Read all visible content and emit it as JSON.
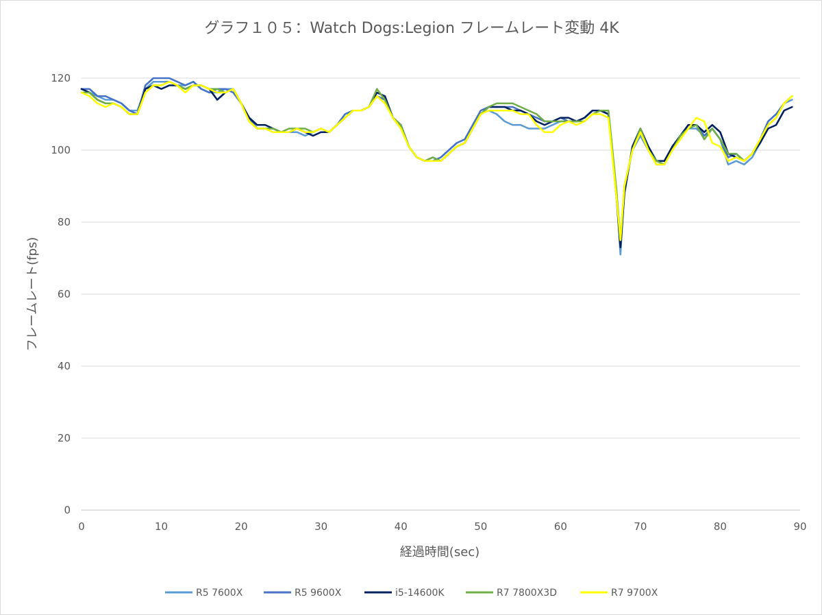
{
  "chart_data": {
    "type": "line",
    "title": "グラフ１０５：Watch Dogs:Legion フレームレート変動 4K",
    "xlabel": "経過時間(sec)",
    "ylabel": "フレームレート(fps)",
    "xlim": [
      0,
      90
    ],
    "ylim": [
      0,
      120
    ],
    "xticks": [
      0,
      10,
      20,
      30,
      40,
      50,
      60,
      70,
      80,
      90
    ],
    "yticks": [
      0,
      20,
      40,
      60,
      80,
      100,
      120
    ],
    "grid": "horizontal",
    "legend_position": "bottom",
    "x": [
      0,
      1,
      2,
      3,
      4,
      5,
      6,
      7,
      8,
      9,
      10,
      11,
      12,
      13,
      14,
      15,
      16,
      17,
      18,
      19,
      20,
      21,
      22,
      23,
      24,
      25,
      26,
      27,
      28,
      29,
      30,
      31,
      32,
      33,
      34,
      35,
      36,
      37,
      38,
      39,
      40,
      41,
      42,
      43,
      44,
      45,
      46,
      47,
      48,
      49,
      50,
      51,
      52,
      53,
      54,
      55,
      56,
      57,
      58,
      59,
      60,
      61,
      62,
      63,
      64,
      65,
      66,
      67,
      67.5,
      68,
      69,
      70,
      71,
      72,
      73,
      74,
      75,
      76,
      77,
      78,
      79,
      80,
      81,
      82,
      83,
      84,
      85,
      86,
      87,
      88,
      89
    ],
    "series": [
      {
        "name": "R5 7600X",
        "color": "#5b9bd5",
        "values": [
          117,
          116,
          115,
          114,
          114,
          113,
          111,
          111,
          117,
          119,
          119,
          119,
          118,
          118,
          119,
          117,
          116,
          116,
          117,
          117,
          113,
          109,
          106,
          106,
          105,
          105,
          105,
          105,
          104,
          105,
          106,
          105,
          107,
          109,
          111,
          111,
          112,
          115,
          114,
          109,
          106,
          101,
          98,
          97,
          98,
          97,
          99,
          101,
          102,
          106,
          110,
          111,
          110,
          108,
          107,
          107,
          106,
          106,
          106,
          107,
          108,
          108,
          108,
          109,
          111,
          111,
          110,
          88,
          71,
          89,
          100,
          104,
          100,
          96,
          96,
          101,
          104,
          106,
          106,
          104,
          106,
          103,
          96,
          97,
          96,
          98,
          102,
          107,
          109,
          113,
          114
        ]
      },
      {
        "name": "R5 9600X",
        "color": "#4472c4",
        "values": [
          117,
          117,
          115,
          115,
          114,
          113,
          111,
          110,
          118,
          120,
          120,
          120,
          119,
          118,
          119,
          117,
          116,
          117,
          117,
          116,
          113,
          109,
          106,
          106,
          106,
          105,
          105,
          106,
          105,
          105,
          106,
          105,
          107,
          110,
          111,
          111,
          112,
          115,
          114,
          109,
          107,
          101,
          98,
          97,
          97,
          98,
          100,
          102,
          103,
          107,
          111,
          112,
          112,
          112,
          112,
          111,
          110,
          109,
          108,
          108,
          109,
          108,
          108,
          109,
          111,
          111,
          110,
          88,
          74,
          90,
          100,
          105,
          100,
          97,
          96,
          101,
          104,
          107,
          107,
          104,
          106,
          103,
          98,
          99,
          97,
          99,
          103,
          108,
          110,
          113,
          115
        ]
      },
      {
        "name": "i5-14600K",
        "color": "#002060",
        "values": [
          117,
          116,
          114,
          113,
          113,
          112,
          110,
          110,
          117,
          118,
          117,
          118,
          118,
          117,
          118,
          118,
          117,
          114,
          116,
          117,
          113,
          109,
          107,
          107,
          106,
          105,
          105,
          106,
          105,
          104,
          105,
          105,
          107,
          109,
          111,
          111,
          112,
          116,
          115,
          109,
          107,
          101,
          98,
          97,
          97,
          97,
          99,
          101,
          102,
          106,
          110,
          112,
          112,
          112,
          111,
          111,
          110,
          108,
          107,
          108,
          109,
          109,
          108,
          109,
          111,
          111,
          110,
          87,
          73,
          88,
          101,
          106,
          101,
          97,
          97,
          101,
          104,
          107,
          107,
          105,
          107,
          105,
          99,
          98,
          97,
          99,
          102,
          106,
          107,
          111,
          112
        ]
      },
      {
        "name": "R7 7800X3D",
        "color": "#70ad47",
        "values": [
          116,
          116,
          114,
          113,
          113,
          112,
          110,
          110,
          116,
          118,
          118,
          119,
          118,
          117,
          118,
          118,
          117,
          117,
          116,
          117,
          113,
          108,
          106,
          106,
          106,
          105,
          106,
          106,
          106,
          105,
          106,
          105,
          107,
          109,
          111,
          111,
          112,
          117,
          114,
          109,
          107,
          101,
          98,
          97,
          98,
          97,
          99,
          101,
          102,
          106,
          110,
          112,
          113,
          113,
          113,
          112,
          111,
          110,
          108,
          108,
          108,
          108,
          108,
          108,
          110,
          111,
          111,
          89,
          75,
          90,
          100,
          106,
          100,
          97,
          96,
          100,
          104,
          106,
          107,
          103,
          106,
          103,
          99,
          99,
          97,
          99,
          103,
          107,
          109,
          113,
          115
        ]
      },
      {
        "name": "R7 9700X",
        "color": "#ffff00",
        "values": [
          116,
          115,
          113,
          112,
          113,
          112,
          110,
          110,
          116,
          118,
          118,
          119,
          118,
          116,
          118,
          118,
          117,
          116,
          116,
          117,
          113,
          108,
          106,
          106,
          105,
          105,
          105,
          106,
          105,
          105,
          106,
          105,
          107,
          109,
          111,
          111,
          112,
          115,
          113,
          109,
          106,
          101,
          98,
          97,
          97,
          97,
          99,
          101,
          102,
          106,
          110,
          111,
          111,
          111,
          111,
          110,
          110,
          107,
          105,
          105,
          107,
          108,
          107,
          108,
          110,
          110,
          109,
          87,
          75,
          90,
          100,
          105,
          100,
          96,
          96,
          100,
          103,
          106,
          109,
          108,
          102,
          101,
          97,
          98,
          97,
          99,
          103,
          107,
          109,
          113,
          115
        ]
      }
    ]
  }
}
